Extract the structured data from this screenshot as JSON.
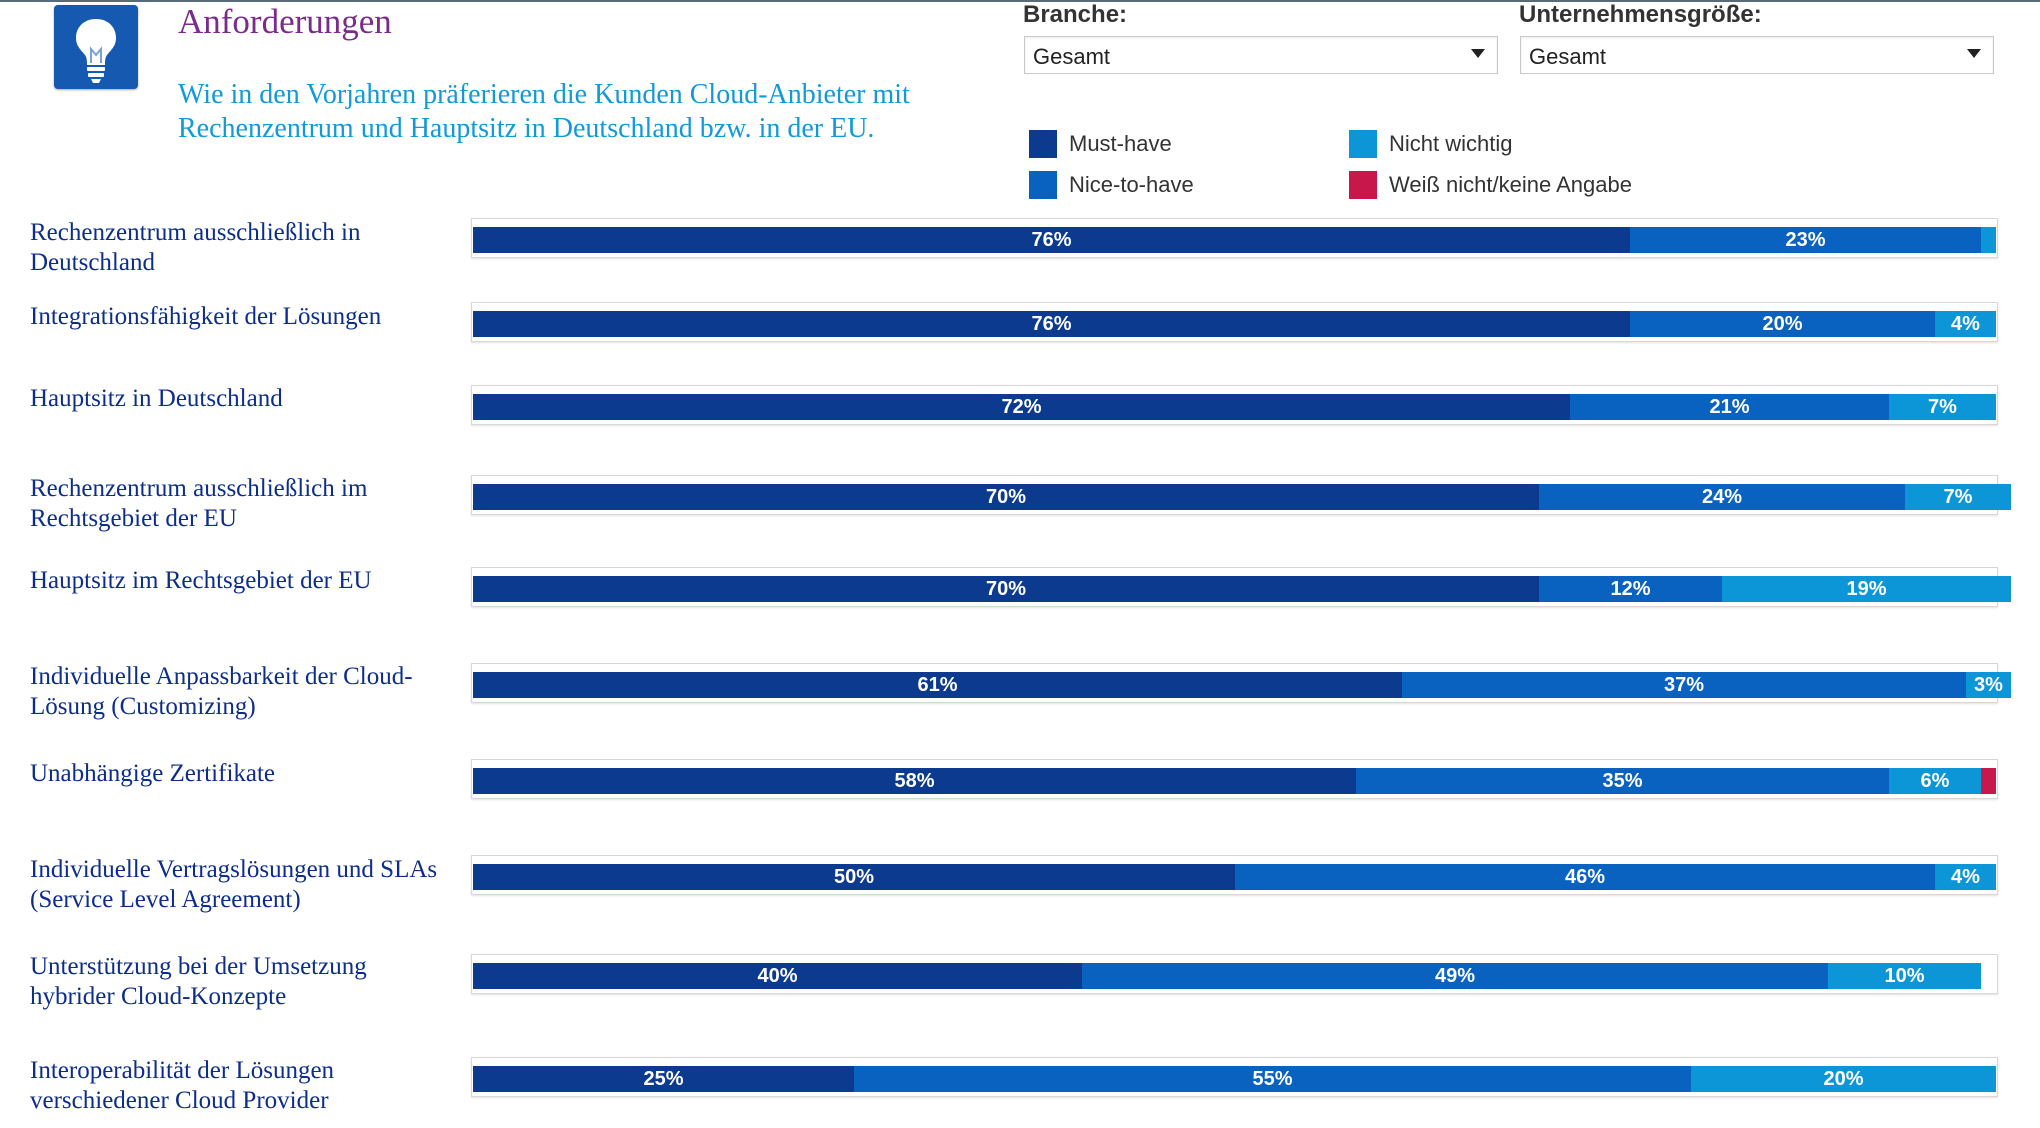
{
  "header": {
    "title": "Anforderungen",
    "subtitle": "Wie in den Vorjahren präferieren die Kunden Cloud-Anbieter mit Rechenzentrum und Hauptsitz in Deutschland bzw. in der EU.",
    "logo_icon": "lightbulb-icon"
  },
  "filters": {
    "branche": {
      "label": "Branche:",
      "value": "Gesamt"
    },
    "groesse": {
      "label": "Unternehmensgröße:",
      "value": "Gesamt"
    }
  },
  "colors": {
    "must": "#0b3a8f",
    "nice": "#0a62c0",
    "nicht": "#0c96d8",
    "weiss": "#c8184b"
  },
  "chart_data": {
    "type": "bar",
    "orientation": "horizontal",
    "stacked": true,
    "title": "",
    "xlabel": "",
    "ylabel": "",
    "xlim": [
      0,
      100
    ],
    "legend_placement": "top-right",
    "categories": [
      [
        "Rechenzentrum ausschließlich in",
        "Deutschland"
      ],
      [
        "Integrationsfähigkeit der Lösungen"
      ],
      [
        "Hauptsitz in Deutschland"
      ],
      [
        "Rechenzentrum ausschließlich im",
        "Rechtsgebiet der EU"
      ],
      [
        "Hauptsitz im Rechtsgebiet der EU"
      ],
      [
        "Individuelle Anpassbarkeit der Cloud-",
        "Lösung (Customizing)"
      ],
      [
        "Unabhängige Zertifikate"
      ],
      [
        "Individuelle Vertragslösungen und SLAs",
        "(Service Level Agreement)"
      ],
      [
        "Unterstützung bei der Umsetzung",
        "hybrider Cloud-Konzepte"
      ],
      [
        "Interoperabilität der Lösungen",
        "verschiedener Cloud Provider"
      ]
    ],
    "series": [
      {
        "name": "Must-have",
        "key": "must",
        "values": [
          76,
          76,
          72,
          70,
          70,
          61,
          58,
          50,
          40,
          25
        ]
      },
      {
        "name": "Nice-to-have",
        "key": "nice",
        "values": [
          23,
          20,
          21,
          24,
          12,
          37,
          35,
          46,
          49,
          55
        ]
      },
      {
        "name": "Nicht wichtig",
        "key": "nicht",
        "values": [
          1,
          4,
          7,
          7,
          19,
          3,
          6,
          4,
          10,
          20
        ]
      },
      {
        "name": "Weiß nicht/keine Angabe",
        "key": "weiss",
        "values": [
          0,
          0,
          0,
          0,
          0,
          0,
          1,
          0,
          0,
          0
        ]
      }
    ],
    "legend": [
      {
        "name": "Must-have",
        "key": "must"
      },
      {
        "name": "Nicht wichtig",
        "key": "nicht"
      },
      {
        "name": "Nice-to-have",
        "key": "nice"
      },
      {
        "name": "Weiß nicht/keine Angabe",
        "key": "weiss"
      }
    ],
    "label_min_value": 3
  }
}
